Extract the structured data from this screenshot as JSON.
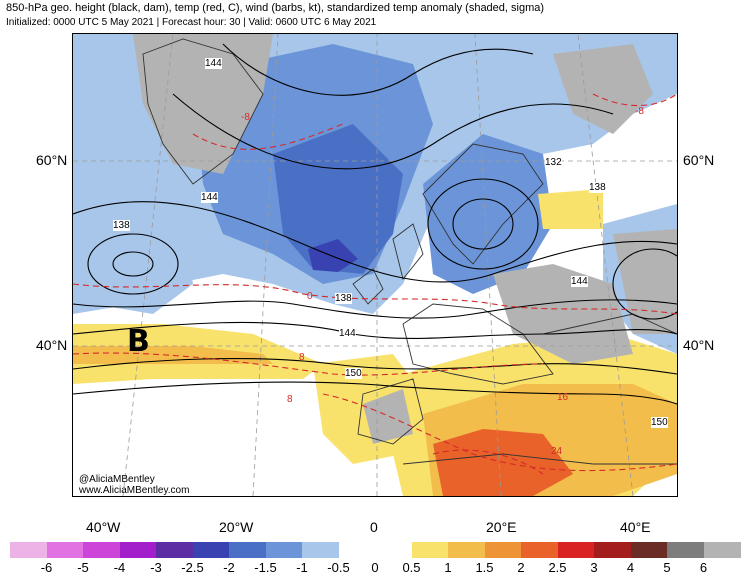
{
  "header": {
    "line1": "850-hPa geo. height (black, dam), temp (red, C), wind (barbs, kt), standardized temp anomaly (shaded, sigma)",
    "line2": "Initialized: 0000 UTC 5 May 2021 | Forecast hour: 30 | Valid: 0600 UTC 6 May 2021"
  },
  "map": {
    "lat_labels": [
      "60°N",
      "40°N"
    ],
    "lon_labels": [
      "40°W",
      "20°W",
      "0",
      "20°E",
      "40°E"
    ],
    "height_labels": [
      "144",
      "138",
      "144",
      "150",
      "138",
      "132",
      "138",
      "144",
      "150",
      "144"
    ],
    "temp_labels": [
      "0",
      "8",
      "8",
      "16",
      "24",
      "-8",
      "-8"
    ],
    "annotation_letter": "B",
    "credit_line1": "@AliciaMBentley",
    "credit_line2": "www.AliciaMBentley.com"
  },
  "colorbar": {
    "labels": [
      "-6",
      "-5",
      "-4",
      "-3",
      "-2.5",
      "-2",
      "-1.5",
      "-1",
      "-0.5",
      "0",
      "0.5",
      "1",
      "1.5",
      "2",
      "2.5",
      "3",
      "4",
      "5",
      "6"
    ],
    "colors": [
      "#eeb3e6",
      "#e272e2",
      "#cc44d8",
      "#a21fcb",
      "#5b2ea4",
      "#3842b1",
      "#4a70c6",
      "#6b95d8",
      "#a7c6ea",
      "#ffffff",
      "#ffffff",
      "#f9e26b",
      "#f2bd4b",
      "#ef9436",
      "#e8622a",
      "#d92323",
      "#a31d1d",
      "#6b2c25",
      "#7d7d7d",
      "#b3b3b3"
    ]
  }
}
